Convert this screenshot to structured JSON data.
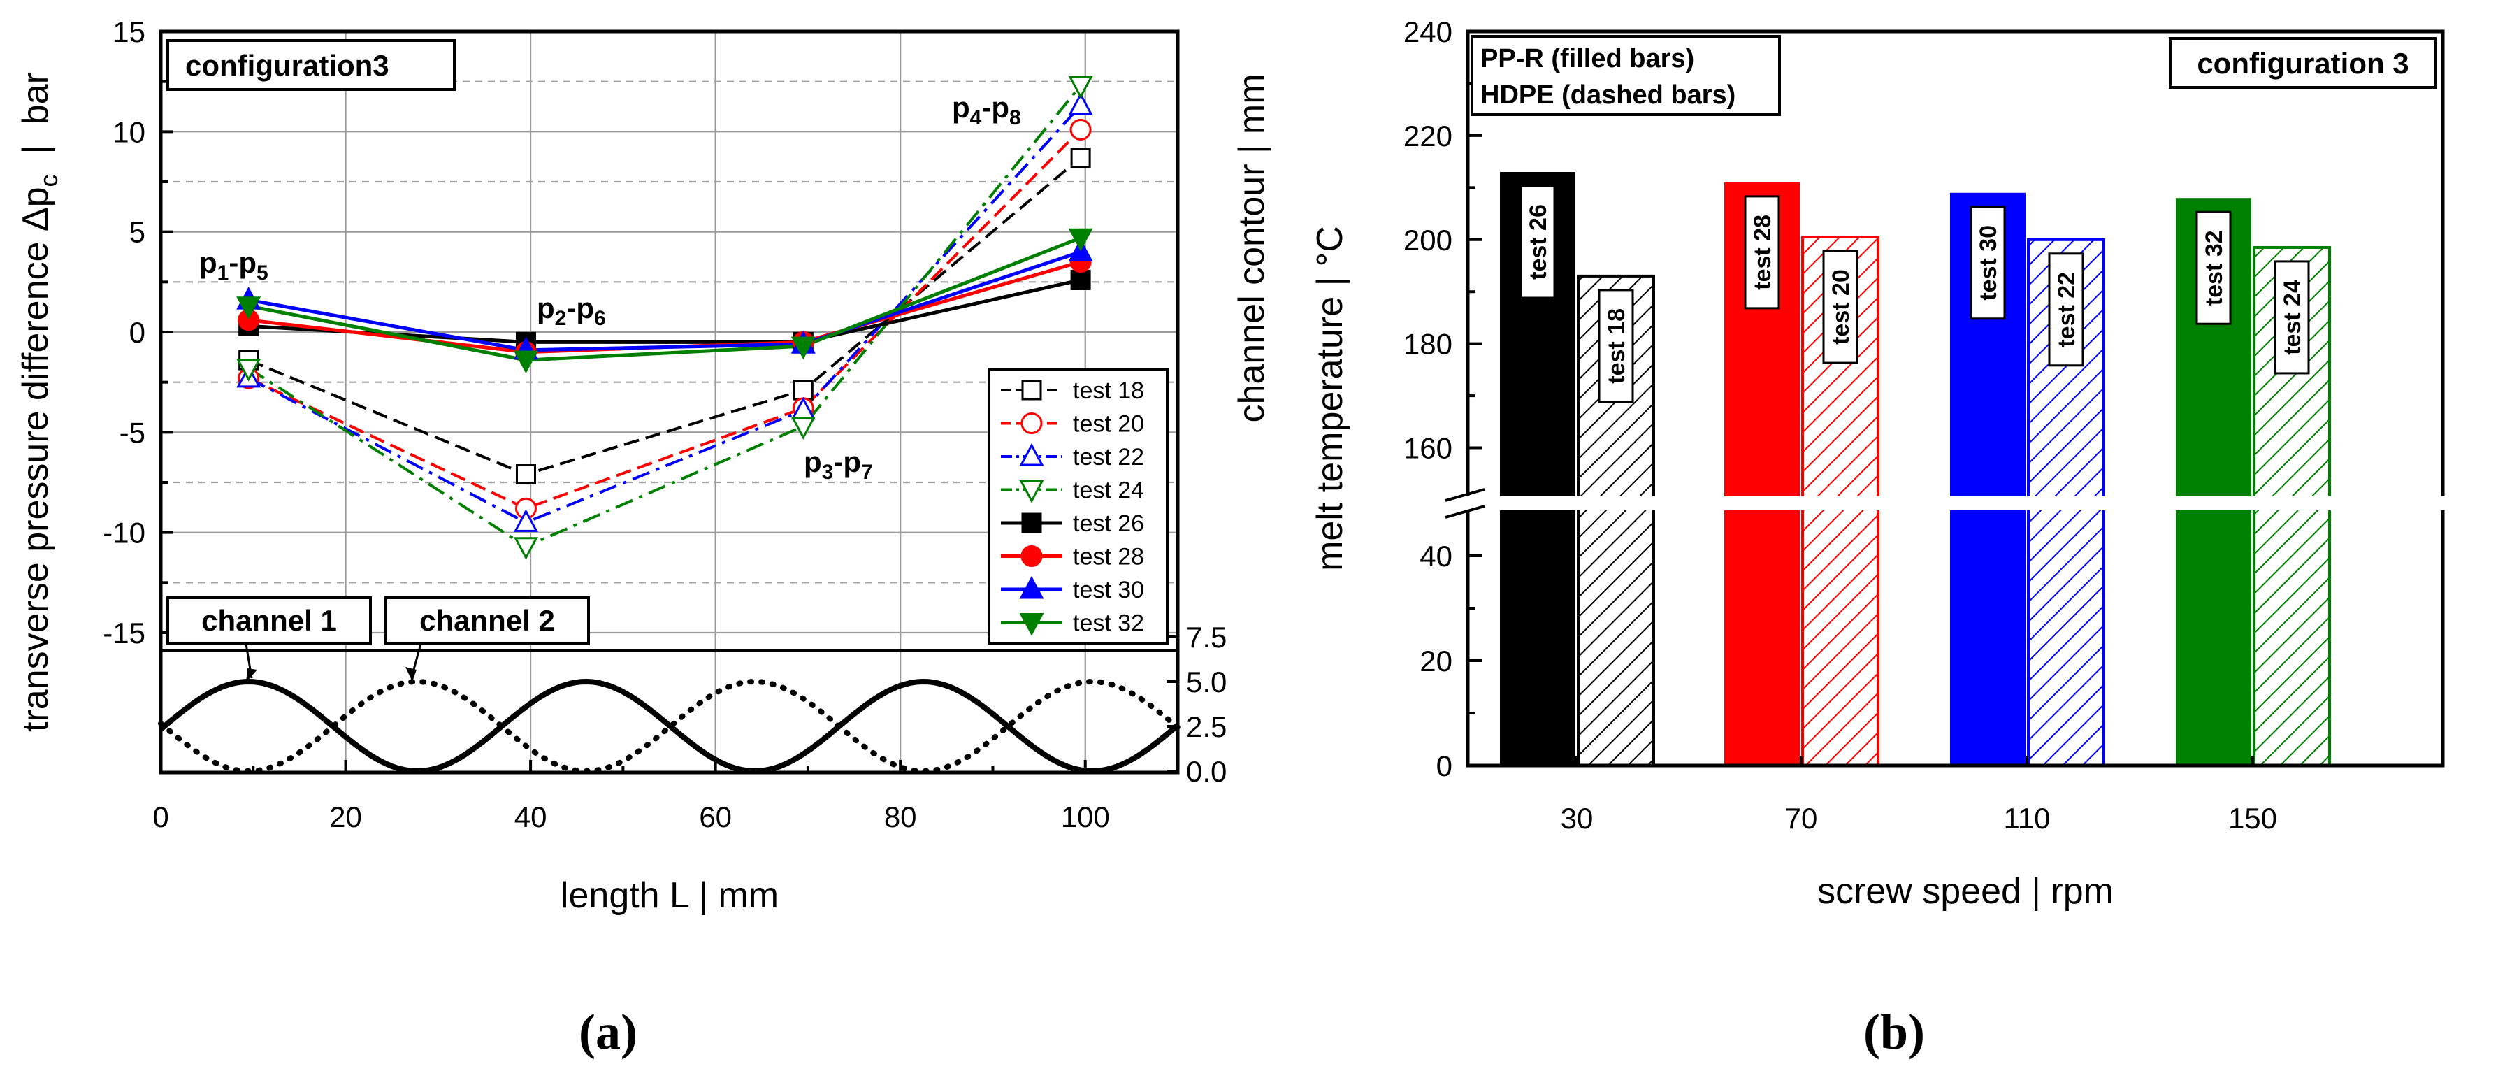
{
  "chart_data": [
    {
      "panel": "(a)",
      "type": "line",
      "title": "configuration3",
      "xlabel": "length L  |  mm",
      "ylabel": "transverse pressure difference Δp",
      "ylabel_sub": "c",
      "ylabel_unit": "  |  bar",
      "ylabel_right": "channel contour  |  mm",
      "xlim": [
        0,
        110
      ],
      "ylim": [
        -15,
        15
      ],
      "xticks": [
        "0",
        "20",
        "40",
        "60",
        "80",
        "100"
      ],
      "yticks": [
        "15",
        "10",
        "5",
        "0",
        "-5",
        "-10",
        "-15"
      ],
      "right_yticks": [
        "7.5",
        "5.0",
        "2.5",
        "0.0"
      ],
      "x": [
        9.5,
        39.5,
        69.5,
        99.5
      ],
      "point_labels": [
        {
          "base": "p",
          "a": "1",
          "mid": "-p",
          "b": "5"
        },
        {
          "base": "p",
          "a": "2",
          "mid": "-p",
          "b": "6"
        },
        {
          "base": "p",
          "a": "3",
          "mid": "-p",
          "b": "7"
        },
        {
          "base": "p",
          "a": "4",
          "mid": "-p",
          "b": "8"
        }
      ],
      "series": [
        {
          "name": "test 18",
          "color": "#000000",
          "marker": "square-open",
          "dash": "dash",
          "values": [
            -1.4,
            -7.1,
            -2.9,
            8.7
          ]
        },
        {
          "name": "test 20",
          "color": "#ff0000",
          "marker": "circle-open",
          "dash": "dash",
          "values": [
            -2.3,
            -8.8,
            -3.8,
            10.1
          ]
        },
        {
          "name": "test 22",
          "color": "#0000ff",
          "marker": "triangle-up-open",
          "dash": "dashdot",
          "values": [
            -2.3,
            -9.5,
            -3.9,
            11.3
          ]
        },
        {
          "name": "test 24",
          "color": "#008000",
          "marker": "triangle-down-open",
          "dash": "dashdot",
          "values": [
            -1.8,
            -10.7,
            -4.7,
            12.3
          ]
        },
        {
          "name": "test 26",
          "color": "#000000",
          "marker": "square-filled",
          "dash": "solid",
          "values": [
            0.3,
            -0.5,
            -0.5,
            2.6
          ]
        },
        {
          "name": "test 28",
          "color": "#ff0000",
          "marker": "circle-filled",
          "dash": "solid",
          "values": [
            0.6,
            -1.0,
            -0.5,
            3.5
          ]
        },
        {
          "name": "test 30",
          "color": "#0000ff",
          "marker": "triangle-up-filled",
          "dash": "solid",
          "values": [
            1.6,
            -0.9,
            -0.6,
            4.0
          ]
        },
        {
          "name": "test 32",
          "color": "#008000",
          "marker": "triangle-down-filled",
          "dash": "solid",
          "values": [
            1.3,
            -1.4,
            -0.7,
            4.7
          ]
        }
      ],
      "channel_labels": [
        "channel 1",
        "channel 2"
      ],
      "channel_contour": {
        "period_mm": 36.5,
        "amplitude_mm": 5.0,
        "channel1_peak_mm": 9.5,
        "channel2_peak_mm": 27.75
      }
    },
    {
      "panel": "(b)",
      "type": "bar",
      "title": "configuration 3",
      "legend_lines": [
        "PP-R (filled bars)",
        "HDPE (dashed bars)"
      ],
      "xlabel": "screw speed  |  rpm",
      "ylabel": "melt temperature  |  °C",
      "categories": [
        "30",
        "70",
        "110",
        "150"
      ],
      "colors": [
        "#000000",
        "#ff0000",
        "#0000ff",
        "#008000"
      ],
      "upper_axis": {
        "range": [
          150,
          240
        ],
        "ticks": [
          "240",
          "220",
          "200",
          "180",
          "160"
        ]
      },
      "lower_axis": {
        "range": [
          0,
          50
        ],
        "ticks": [
          "40",
          "20",
          "0"
        ]
      },
      "series": [
        {
          "name": "PP-R",
          "style": "filled",
          "labels": [
            "test 26",
            "test 28",
            "test 30",
            "test 32"
          ],
          "values": [
            213,
            211,
            209,
            208
          ]
        },
        {
          "name": "HDPE",
          "style": "hatched",
          "labels": [
            "test 18",
            "test 20",
            "test 22",
            "test 24"
          ],
          "values": [
            193,
            200.5,
            200,
            198.5
          ]
        }
      ]
    }
  ],
  "captions": [
    "(a)",
    "(b)"
  ]
}
